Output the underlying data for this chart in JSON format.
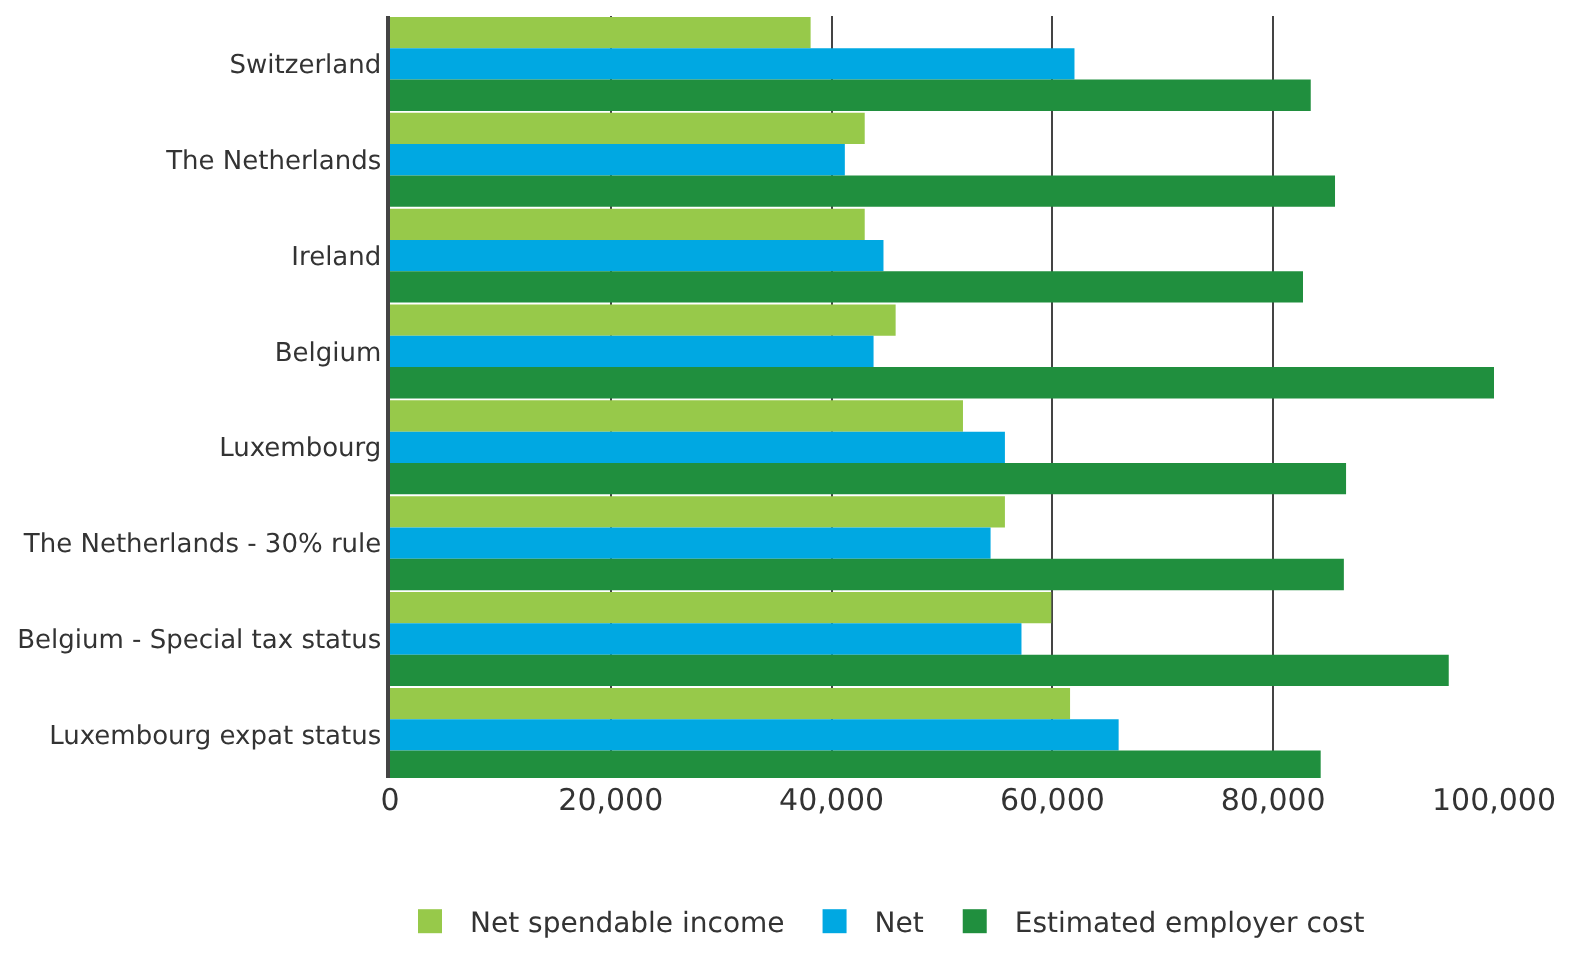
{
  "chart_data": {
    "type": "bar",
    "orientation": "horizontal",
    "categories": [
      "Switzerland",
      "The Netherlands",
      "Ireland",
      "Belgium",
      "Luxembourg",
      "The Netherlands - 30% rule",
      "Belgium - Special tax status",
      "Luxembourg expat status"
    ],
    "series": [
      {
        "name": "Net spendable income",
        "color": "#97c94a",
        "values": [
          38100,
          43000,
          43000,
          45800,
          51900,
          55700,
          59900,
          61600
        ]
      },
      {
        "name": "Net",
        "color": "#00a8e2",
        "values": [
          62000,
          41200,
          44700,
          43800,
          55700,
          54400,
          57200,
          66000
        ]
      },
      {
        "name": "Estimated employer cost",
        "color": "#208f3e",
        "values": [
          83400,
          85600,
          82700,
          100000,
          86600,
          86400,
          95900,
          84300
        ]
      }
    ],
    "xlim": [
      0,
      100000
    ],
    "xticks": [
      {
        "value": 0,
        "label": "0"
      },
      {
        "value": 20000,
        "label": "20,000"
      },
      {
        "value": 40000,
        "label": "40,000"
      },
      {
        "value": 60000,
        "label": "60,000"
      },
      {
        "value": 80000,
        "label": "80,000"
      },
      {
        "value": 100000,
        "label": "100,000"
      }
    ],
    "grid": "x",
    "legend": "bottom"
  }
}
